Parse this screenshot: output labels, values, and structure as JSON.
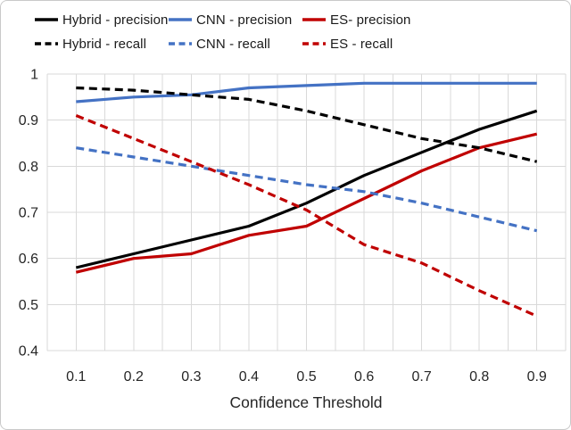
{
  "figure": {
    "background": "#ffffff",
    "border_color": "#c9c9c9"
  },
  "chart_data": {
    "type": "line",
    "x": [
      0.1,
      0.2,
      0.3,
      0.4,
      0.5,
      0.6,
      0.7,
      0.8,
      0.9
    ],
    "series": [
      {
        "name": "Hybrid - precision",
        "color": "#000000",
        "line_style": "solid",
        "values": [
          0.58,
          0.61,
          0.64,
          0.67,
          0.72,
          0.78,
          0.83,
          0.88,
          0.92
        ]
      },
      {
        "name": "CNN - precision",
        "color": "#4472c4",
        "line_style": "solid",
        "values": [
          0.94,
          0.95,
          0.955,
          0.97,
          0.975,
          0.98,
          0.98,
          0.98,
          0.98
        ]
      },
      {
        "name": "ES- precision",
        "color": "#c00000",
        "line_style": "solid",
        "values": [
          0.57,
          0.6,
          0.61,
          0.65,
          0.67,
          0.73,
          0.79,
          0.84,
          0.87
        ]
      },
      {
        "name": "Hybrid - recall",
        "color": "#000000",
        "line_style": "dashed",
        "values": [
          0.97,
          0.965,
          0.955,
          0.945,
          0.92,
          0.89,
          0.86,
          0.84,
          0.81
        ]
      },
      {
        "name": "CNN - recall",
        "color": "#4472c4",
        "line_style": "dashed",
        "values": [
          0.84,
          0.82,
          0.8,
          0.78,
          0.76,
          0.745,
          0.72,
          0.69,
          0.66
        ]
      },
      {
        "name": "ES - recall",
        "color": "#c00000",
        "line_style": "dashed",
        "values": [
          0.91,
          0.86,
          0.81,
          0.76,
          0.705,
          0.63,
          0.59,
          0.53,
          0.475
        ]
      }
    ],
    "xlabel": "Confidence Threshold",
    "ylabel": "",
    "xlim": [
      0.05,
      0.95
    ],
    "ylim": [
      0.4,
      1.0
    ],
    "x_tick_labels": [
      "0.1",
      "0.2",
      "0.3",
      "0.4",
      "0.5",
      "0.6",
      "0.7",
      "0.8",
      "0.9"
    ],
    "y_tick_labels": [
      "1",
      "0.9",
      "0.8",
      "0.7",
      "0.6",
      "0.5",
      "0.4"
    ],
    "y_ticks": [
      1.0,
      0.9,
      0.8,
      0.7,
      0.6,
      0.5,
      0.4
    ],
    "grid": {
      "on": true,
      "color": "#d9d9d9",
      "x_step": 0.05,
      "y_step": 0.1
    },
    "legend_position": "top",
    "tick_label_color": "#262626",
    "axis_title_color": "#262626"
  }
}
